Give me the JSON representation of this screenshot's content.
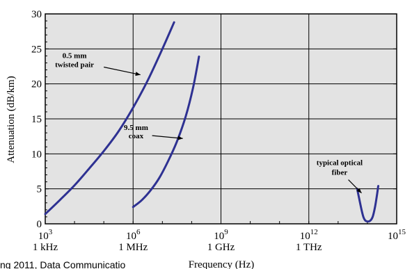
{
  "chart_data": {
    "type": "line",
    "title": "",
    "xlabel": "Frequency (Hz)",
    "ylabel": "Attenuation (dB/km)",
    "x_scale": "log",
    "xlim_exponent": [
      3,
      15
    ],
    "ylim": [
      0,
      30
    ],
    "grid": true,
    "x_ticks": [
      {
        "exponent": 3,
        "base": "10",
        "sup": "3",
        "sub": "1 kHz"
      },
      {
        "exponent": 6,
        "base": "10",
        "sup": "6",
        "sub": "1 MHz"
      },
      {
        "exponent": 9,
        "base": "10",
        "sup": "9",
        "sub": "1 GHz"
      },
      {
        "exponent": 12,
        "base": "10",
        "sup": "12",
        "sub": "1 THz"
      },
      {
        "exponent": 15,
        "base": "10",
        "sup": "15",
        "sub": ""
      }
    ],
    "y_ticks": [
      {
        "value": 0,
        "label": "0"
      },
      {
        "value": 5,
        "label": "5"
      },
      {
        "value": 10,
        "label": "10"
      },
      {
        "value": 15,
        "label": "15"
      },
      {
        "value": 20,
        "label": "20"
      },
      {
        "value": 25,
        "label": "25"
      },
      {
        "value": 30,
        "label": "30"
      }
    ],
    "series": [
      {
        "key": "twisted",
        "color": "#2e3192",
        "points": [
          [
            3.0,
            1.4
          ],
          [
            3.5,
            3.4
          ],
          [
            4.0,
            5.5
          ],
          [
            4.5,
            7.9
          ],
          [
            5.0,
            10.4
          ],
          [
            5.5,
            13.2
          ],
          [
            6.0,
            16.6
          ],
          [
            6.5,
            20.5
          ],
          [
            7.0,
            25.0
          ],
          [
            7.4,
            28.8
          ]
        ]
      },
      {
        "key": "coax",
        "color": "#2e3192",
        "points": [
          [
            6.0,
            2.4
          ],
          [
            6.3,
            3.4
          ],
          [
            6.6,
            4.8
          ],
          [
            6.9,
            6.6
          ],
          [
            7.2,
            9.0
          ],
          [
            7.5,
            11.8
          ],
          [
            7.8,
            15.4
          ],
          [
            8.05,
            19.5
          ],
          [
            8.25,
            23.9
          ]
        ]
      },
      {
        "key": "fiber",
        "color": "#2e3192",
        "points": [
          [
            13.65,
            5.0
          ],
          [
            13.72,
            3.6
          ],
          [
            13.8,
            2.0
          ],
          [
            13.87,
            0.9
          ],
          [
            13.95,
            0.4
          ],
          [
            14.08,
            0.4
          ],
          [
            14.18,
            1.0
          ],
          [
            14.26,
            2.4
          ],
          [
            14.33,
            4.2
          ],
          [
            14.37,
            5.4
          ]
        ]
      }
    ],
    "annotations": [
      {
        "key": "twisted",
        "lines": [
          "0.5 mm",
          "twisted pair"
        ],
        "text_x": 4.0,
        "text_y": [
          23.7,
          22.4
        ],
        "arrow_from": [
          5.0,
          22.4
        ],
        "arrow_to": [
          6.25,
          21.3
        ]
      },
      {
        "key": "coax",
        "lines": [
          "9.5 mm",
          "coax"
        ],
        "text_x": 6.1,
        "text_y": [
          13.4,
          12.2
        ],
        "arrow_from": [
          6.65,
          12.6
        ],
        "arrow_to": [
          7.7,
          12.2
        ]
      },
      {
        "key": "fiber",
        "lines": [
          "typical optical",
          "fiber"
        ],
        "text_x": 13.05,
        "text_y": [
          8.4,
          7.0
        ],
        "arrow_from": [
          13.35,
          6.3
        ],
        "arrow_to": [
          13.8,
          4.4
        ]
      }
    ]
  },
  "footer": {
    "caption": "ng 2011, Data Communicatio"
  }
}
